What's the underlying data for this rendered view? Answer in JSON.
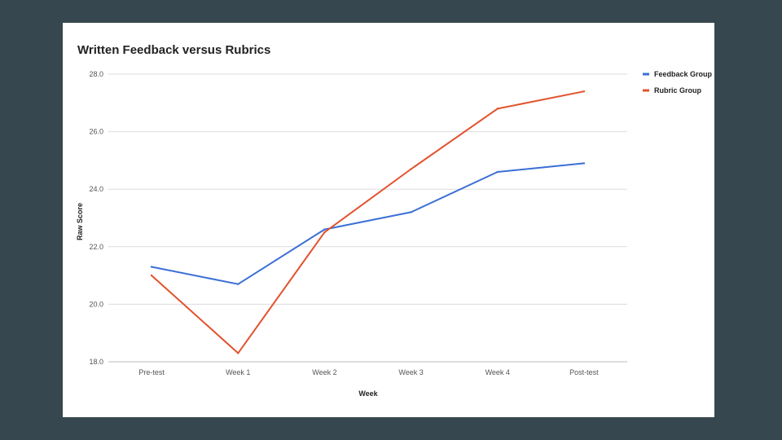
{
  "chart_data": {
    "type": "line",
    "title": "Written Feedback versus Rubrics",
    "xlabel": "Week",
    "ylabel": "Raw Score",
    "categories": [
      "Pre-test",
      "Week 1",
      "Week 2",
      "Week 3",
      "Week 4",
      "Post-test"
    ],
    "ylim": [
      18.0,
      28.0
    ],
    "yticks": [
      "18.0",
      "20.0",
      "22.0",
      "24.0",
      "26.0",
      "28.0"
    ],
    "grid": true,
    "legend_position": "right",
    "series": [
      {
        "name": "Feedback Group",
        "color": "#3b6fd6",
        "values": [
          21.3,
          20.7,
          22.6,
          23.2,
          24.6,
          24.9
        ]
      },
      {
        "name": "Rubric Group",
        "color": "#e2522d",
        "values": [
          21.0,
          18.3,
          22.5,
          24.7,
          26.8,
          27.4
        ]
      }
    ]
  }
}
